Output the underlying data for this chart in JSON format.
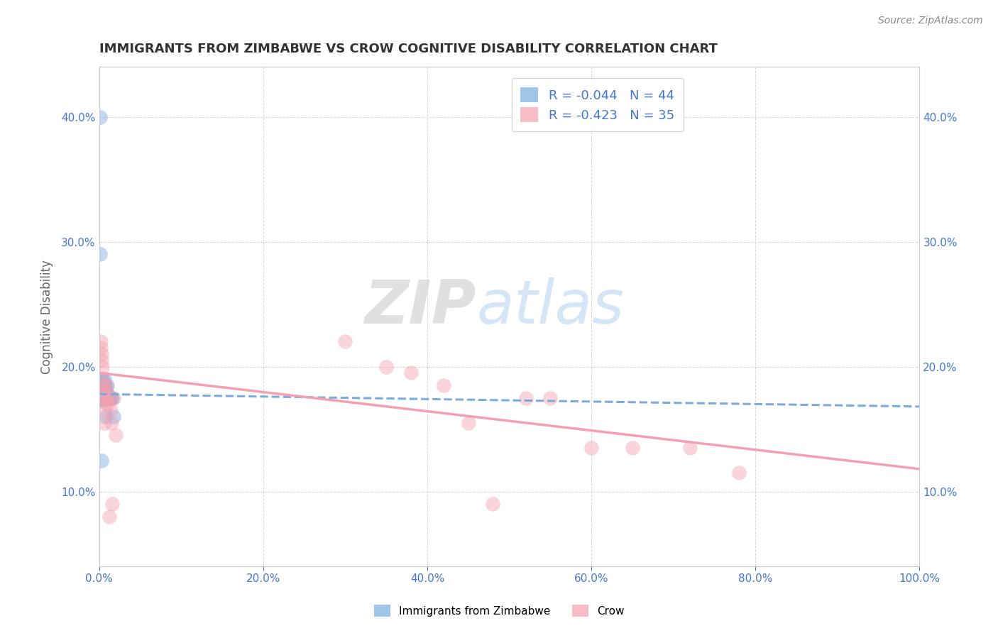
{
  "title": "IMMIGRANTS FROM ZIMBABWE VS CROW COGNITIVE DISABILITY CORRELATION CHART",
  "source": "Source: ZipAtlas.com",
  "xlabel": "",
  "ylabel": "Cognitive Disability",
  "xlim": [
    0.0,
    1.0
  ],
  "ylim": [
    0.04,
    0.44
  ],
  "x_ticks": [
    0.0,
    0.2,
    0.4,
    0.6,
    0.8,
    1.0
  ],
  "x_tick_labels": [
    "0.0%",
    "20.0%",
    "40.0%",
    "60.0%",
    "80.0%",
    "100.0%"
  ],
  "y_ticks": [
    0.1,
    0.2,
    0.3,
    0.4
  ],
  "y_tick_labels": [
    "10.0%",
    "20.0%",
    "30.0%",
    "40.0%"
  ],
  "legend_r1": "-0.044",
  "legend_n1": "44",
  "legend_r2": "-0.423",
  "legend_n2": "35",
  "legend_label1": "Immigrants from Zimbabwe",
  "legend_label2": "Crow",
  "color_blue": "#7AACE0",
  "color_pink": "#F5A0B0",
  "color_text_blue": "#4477CC",
  "title_color": "#333333",
  "source_color": "#888888",
  "watermark_zip": "ZIP",
  "watermark_atlas": "atlas",
  "blue_scatter_x": [
    0.001,
    0.001,
    0.001,
    0.002,
    0.002,
    0.002,
    0.002,
    0.003,
    0.003,
    0.003,
    0.003,
    0.003,
    0.004,
    0.004,
    0.004,
    0.004,
    0.004,
    0.005,
    0.005,
    0.005,
    0.005,
    0.005,
    0.006,
    0.006,
    0.006,
    0.006,
    0.007,
    0.007,
    0.007,
    0.008,
    0.008,
    0.009,
    0.009,
    0.01,
    0.01,
    0.011,
    0.012,
    0.013,
    0.015,
    0.016,
    0.018,
    0.001,
    0.002,
    0.003
  ],
  "blue_scatter_y": [
    0.4,
    0.175,
    0.175,
    0.18,
    0.175,
    0.185,
    0.175,
    0.175,
    0.19,
    0.18,
    0.175,
    0.185,
    0.175,
    0.19,
    0.173,
    0.18,
    0.175,
    0.185,
    0.175,
    0.18,
    0.175,
    0.175,
    0.18,
    0.185,
    0.175,
    0.19,
    0.175,
    0.18,
    0.185,
    0.175,
    0.16,
    0.175,
    0.18,
    0.175,
    0.185,
    0.175,
    0.175,
    0.175,
    0.175,
    0.175,
    0.16,
    0.29,
    0.175,
    0.125
  ],
  "pink_scatter_x": [
    0.002,
    0.002,
    0.003,
    0.003,
    0.004,
    0.004,
    0.005,
    0.005,
    0.005,
    0.006,
    0.006,
    0.007,
    0.008,
    0.009,
    0.01,
    0.011,
    0.012,
    0.013,
    0.014,
    0.015,
    0.016,
    0.018,
    0.02,
    0.35,
    0.38,
    0.42,
    0.45,
    0.48,
    0.52,
    0.55,
    0.6,
    0.65,
    0.72,
    0.78,
    0.3
  ],
  "pink_scatter_y": [
    0.22,
    0.215,
    0.21,
    0.205,
    0.2,
    0.19,
    0.185,
    0.18,
    0.175,
    0.155,
    0.175,
    0.165,
    0.18,
    0.185,
    0.17,
    0.175,
    0.08,
    0.175,
    0.165,
    0.155,
    0.09,
    0.175,
    0.145,
    0.2,
    0.195,
    0.185,
    0.155,
    0.09,
    0.175,
    0.175,
    0.135,
    0.135,
    0.135,
    0.115,
    0.22
  ],
  "blue_line_x": [
    0.0,
    1.0
  ],
  "blue_line_y": [
    0.178,
    0.168
  ],
  "pink_line_x": [
    0.0,
    1.0
  ],
  "pink_line_y": [
    0.195,
    0.118
  ],
  "background_color": "#FFFFFF",
  "grid_color": "#CCCCCC"
}
